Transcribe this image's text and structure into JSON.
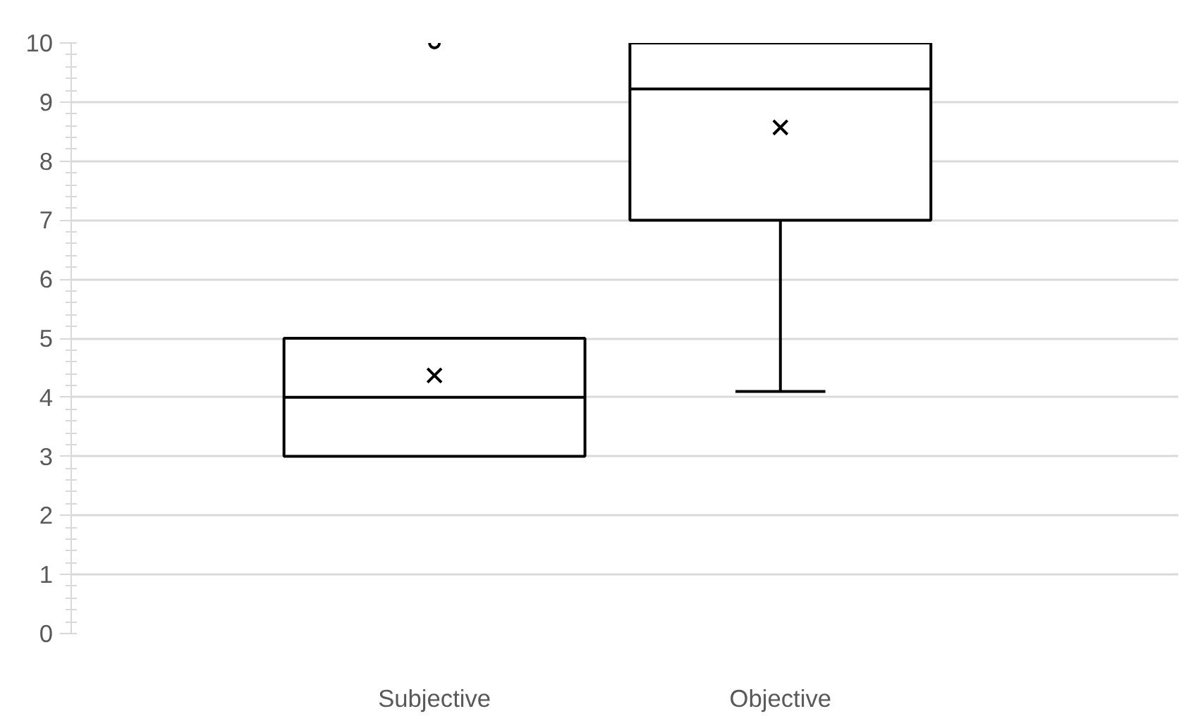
{
  "chart_data": {
    "type": "box",
    "categories": [
      "Subjective",
      "Objective"
    ],
    "boxes": [
      {
        "low": 3,
        "q1": 3,
        "median": 4,
        "q3": 5,
        "high": 5,
        "mean": 4.37,
        "outliers": [
          10
        ]
      },
      {
        "low": 4.1,
        "q1": 7,
        "median": 9.22,
        "q3": 10,
        "high": 10,
        "mean": 8.57
      }
    ],
    "ylim": [
      0,
      10
    ],
    "yticks": [
      0,
      1,
      2,
      3,
      4,
      5,
      6,
      7,
      8,
      9,
      10
    ],
    "grid": "y"
  }
}
